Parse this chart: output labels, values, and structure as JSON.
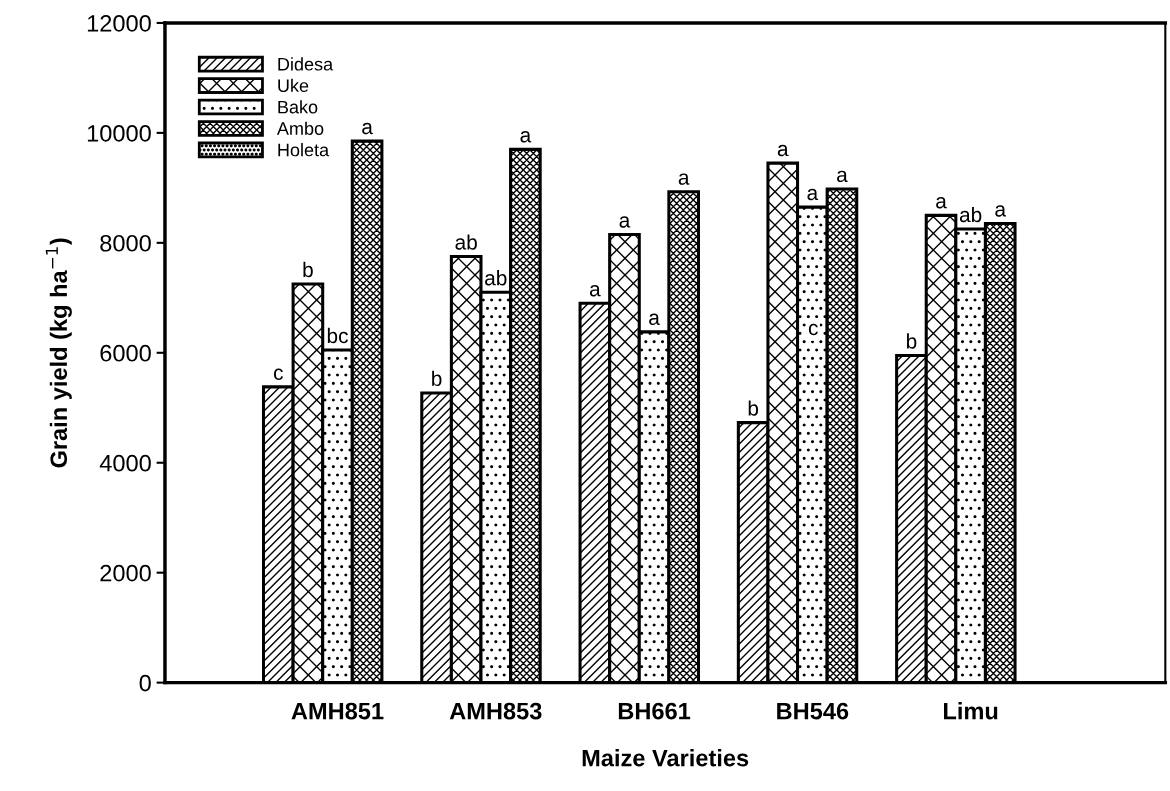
{
  "chart_data": {
    "type": "bar",
    "xlabel": "Maize Varieties",
    "ylabel": "Grain yield (kg ha$^{−1}$)",
    "categories": [
      "AMH851",
      "AMH853",
      "BH661",
      "BH546",
      "Limu"
    ],
    "series": [
      {
        "name": "Didesa",
        "color": "#000000",
        "values": [
          5380,
          5270,
          6900,
          4730,
          5950
        ],
        "value_labels": [
          "c",
          "b",
          "a",
          "b",
          "b"
        ]
      },
      {
        "name": "Uke",
        "color": "#000000",
        "values": [
          7250,
          7750,
          8150,
          9450,
          8500
        ],
        "value_labels": [
          "b",
          "ab",
          "a",
          "a",
          "a"
        ]
      },
      {
        "name": "Bako",
        "color": "#000000",
        "values": [
          6050,
          7100,
          6380,
          8650,
          8250
        ],
        "value_labels": [
          "bc",
          "ab",
          "a",
          "a",
          "ab"
        ]
      },
      {
        "name": "Ambo",
        "color": "#000000",
        "values": [
          9850,
          9700,
          8930,
          8980,
          8350
        ],
        "value_labels": [
          "a",
          "a",
          "a",
          "a",
          "a"
        ]
      },
      {
        "name": "Holeta",
        "color": "#000000",
        "values": [
          null,
          null,
          null,
          null,
          null
        ]
      }
    ],
    "annotations": [
      "c"
    ],
    "ylim": [
      0,
      12000
    ],
    "yticks": [
      0,
      2000,
      4000,
      6000,
      8000,
      10000,
      12000
    ],
    "grid": false,
    "legend": "top left"
  }
}
